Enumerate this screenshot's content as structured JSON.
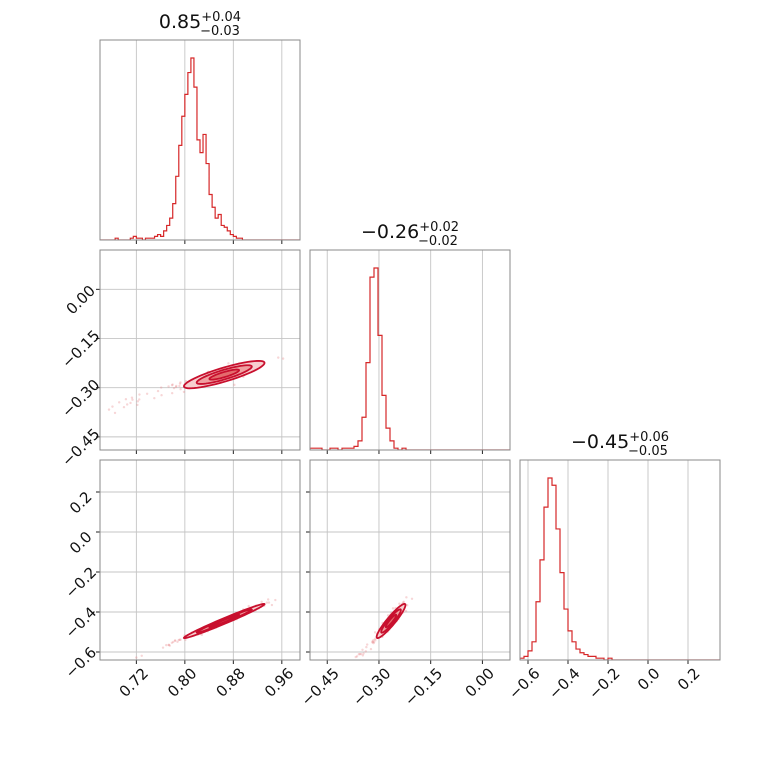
{
  "chart_data": [
    {
      "type": "histogram",
      "param": 0,
      "title": {
        "median": "0.85",
        "plus": "+0.04",
        "minus": "−0.03"
      },
      "xlim": [
        0.66,
        0.99
      ],
      "bin_start": 0.66,
      "bin_width": 0.005,
      "counts": [
        0,
        0,
        0,
        0,
        0,
        1,
        0,
        0,
        0,
        0,
        1,
        2,
        1,
        1,
        0,
        1,
        1,
        1,
        2,
        3,
        2,
        5,
        8,
        12,
        20,
        35,
        52,
        68,
        80,
        92,
        100,
        84,
        55,
        48,
        58,
        42,
        25,
        18,
        12,
        14,
        8,
        7,
        5,
        3,
        2,
        1,
        1,
        0,
        0,
        0,
        0,
        0,
        0,
        0,
        0,
        0,
        0,
        0,
        0,
        0,
        0,
        0,
        0,
        0,
        0,
        0
      ],
      "color": "#d62728"
    },
    {
      "type": "histogram",
      "param": 1,
      "title": {
        "median": "−0.26",
        "plus": "+0.02",
        "minus": "−0.02"
      },
      "xlim": [
        -0.5,
        0.08
      ],
      "bin_start": -0.5,
      "bin_width": 0.0116,
      "counts": [
        1,
        1,
        1,
        0,
        0,
        1,
        1,
        0,
        1,
        1,
        1,
        2,
        5,
        18,
        48,
        95,
        100,
        63,
        30,
        12,
        5,
        1,
        0,
        1,
        0,
        0,
        0,
        0,
        0,
        0,
        0,
        0,
        0,
        0,
        0,
        0,
        0,
        0,
        0,
        0,
        0,
        0,
        0,
        0,
        0,
        0,
        0,
        0,
        0,
        0
      ],
      "color": "#d62728"
    },
    {
      "type": "histogram",
      "param": 2,
      "title": {
        "median": "−0.45",
        "plus": "+0.06",
        "minus": "−0.05"
      },
      "xlim": [
        -0.64,
        0.36
      ],
      "bin_start": -0.64,
      "bin_width": 0.02,
      "counts": [
        1,
        2,
        5,
        10,
        32,
        55,
        84,
        100,
        96,
        72,
        48,
        28,
        16,
        10,
        6,
        4,
        3,
        2,
        2,
        1,
        1,
        0,
        1,
        0,
        0,
        0,
        0,
        0,
        0,
        0,
        0,
        0,
        0,
        0,
        0,
        0,
        0,
        0,
        0,
        0,
        0,
        0,
        0,
        0,
        0,
        0,
        0,
        0,
        0,
        0
      ],
      "color": "#d62728"
    },
    {
      "type": "scatter",
      "params": [
        0,
        1
      ],
      "xlim": [
        0.66,
        0.99
      ],
      "ylim": [
        -0.49,
        0.12
      ],
      "mean": [
        0.865,
        -0.26
      ],
      "sd": [
        0.035,
        0.022
      ],
      "rho": 0.85,
      "yticks": [
        "0.00",
        "−0.15",
        "−0.30",
        "−0.45"
      ],
      "ytick_values": [
        0.0,
        -0.15,
        -0.3,
        -0.45
      ],
      "color": "#d62728"
    },
    {
      "type": "scatter",
      "params": [
        0,
        2
      ],
      "xlim": [
        0.66,
        0.99
      ],
      "ylim": [
        -0.64,
        0.36
      ],
      "mean": [
        0.865,
        -0.445
      ],
      "sd": [
        0.035,
        0.045
      ],
      "rho": 0.985,
      "xticks": [
        "0.72",
        "0.80",
        "0.88",
        "0.96"
      ],
      "xtick_values": [
        0.72,
        0.8,
        0.88,
        0.96
      ],
      "yticks": [
        "0.2",
        "0.0",
        "−0.2",
        "−0.4",
        "−0.6"
      ],
      "ytick_values": [
        0.2,
        0.0,
        -0.2,
        -0.4,
        -0.6
      ],
      "color": "#d62728"
    },
    {
      "type": "scatter",
      "params": [
        1,
        2
      ],
      "xlim": [
        -0.5,
        0.08
      ],
      "ylim": [
        -0.64,
        0.36
      ],
      "mean": [
        -0.265,
        -0.445
      ],
      "sd": [
        0.022,
        0.045
      ],
      "rho": 0.93,
      "xticks": [
        "−0.45",
        "−0.30",
        "−0.15",
        "0.00"
      ],
      "xtick_values": [
        -0.45,
        -0.3,
        -0.15,
        0.0
      ],
      "color": "#d62728"
    },
    {
      "type": "axis",
      "param": 2,
      "xticks": [
        "−0.6",
        "−0.4",
        "−0.2",
        "0.0",
        "0.2"
      ],
      "xtick_values": [
        -0.6,
        -0.4,
        -0.2,
        0.0,
        0.2
      ]
    }
  ]
}
